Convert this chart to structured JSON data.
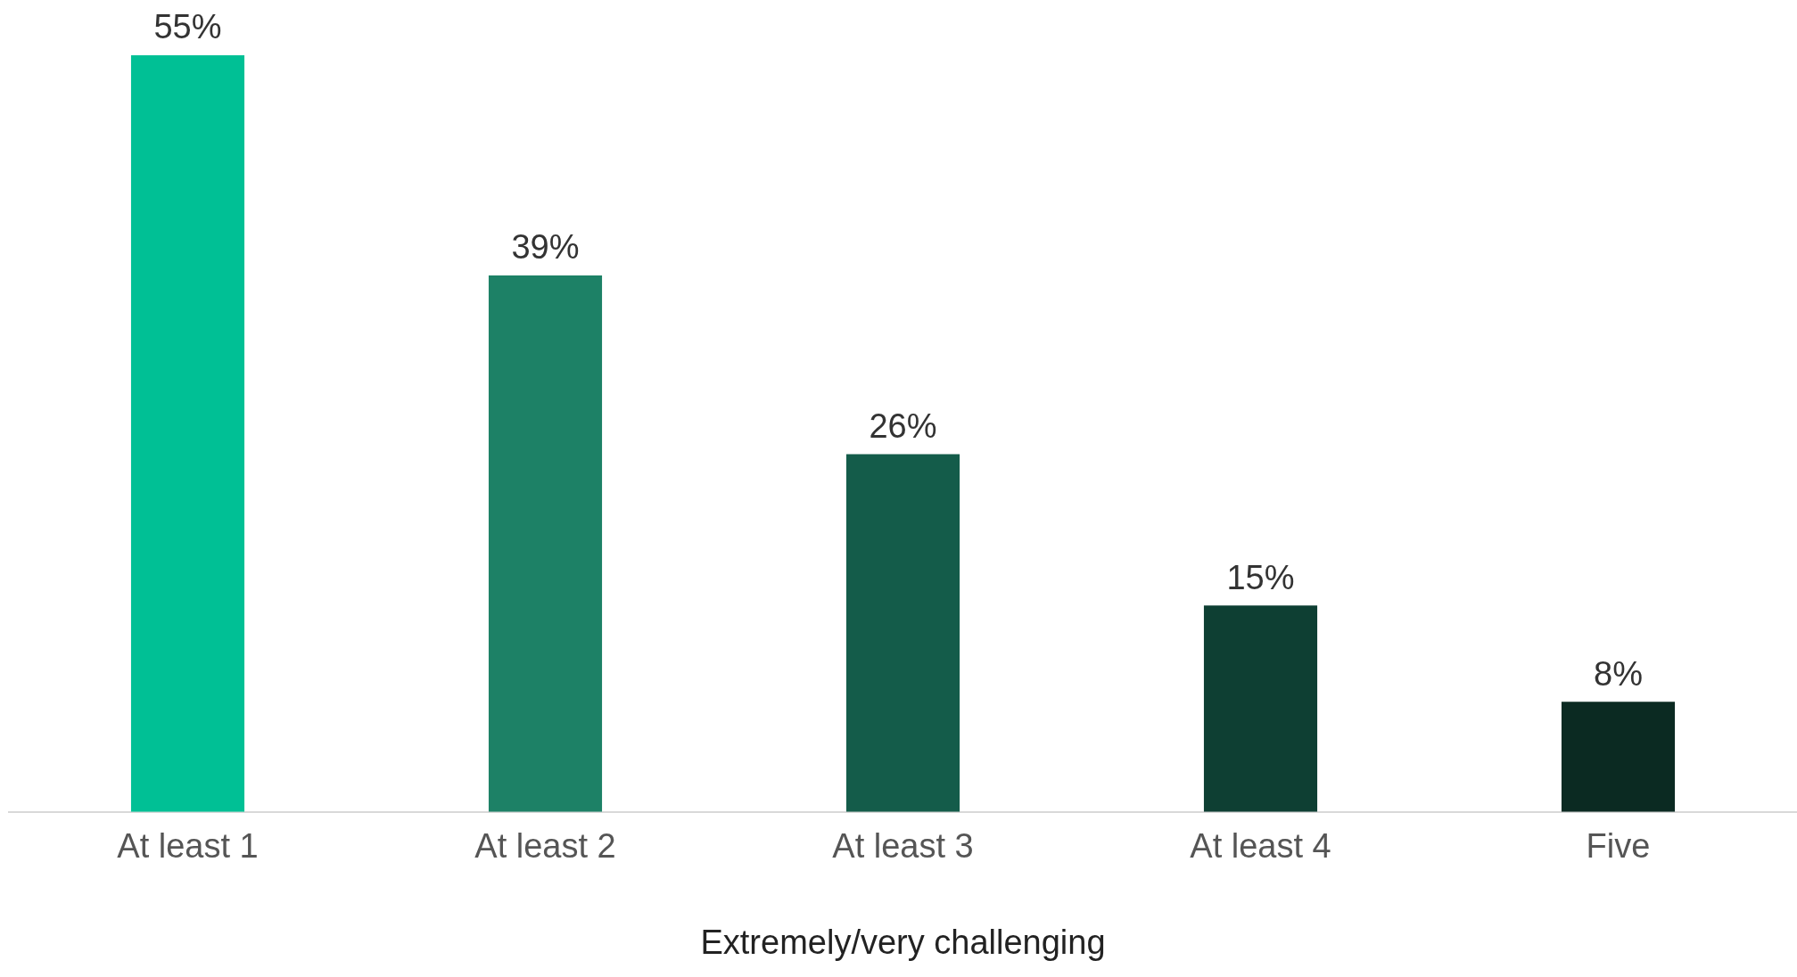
{
  "chart_data": {
    "type": "bar",
    "xlabel": "Extremely/very challenging",
    "categories": [
      "At least 1",
      "At least 2",
      "At least 3",
      "At least 4",
      "Five"
    ],
    "values": [
      55,
      39,
      26,
      15,
      8
    ],
    "colors": [
      "#00c095",
      "#1d8166",
      "#145c4a",
      "#0e3f33",
      "#0b2a22"
    ],
    "value_labels": [
      "55%",
      "39%",
      "26%",
      "15%",
      "8%"
    ],
    "grid": false,
    "legend": false
  }
}
